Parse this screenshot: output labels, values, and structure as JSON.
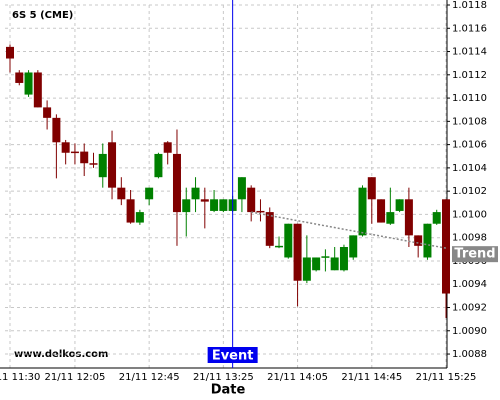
{
  "chart_data": {
    "type": "candlestick",
    "title": "6S 5 (CME)",
    "watermark": "www.delkos.com",
    "x_label": "Date",
    "categories": [
      "21/11 11:30",
      null,
      null,
      null,
      null,
      null,
      null,
      "21/11 12:05",
      null,
      null,
      null,
      null,
      null,
      null,
      null,
      "21/11 12:45",
      null,
      null,
      null,
      null,
      null,
      null,
      null,
      "21/11 13:25",
      null,
      null,
      null,
      null,
      null,
      null,
      null,
      "21/11 14:05",
      null,
      null,
      null,
      null,
      null,
      null,
      null,
      "21/11 14:45",
      null,
      null,
      null,
      null,
      null,
      null,
      null,
      "21/11 15:25"
    ],
    "open": [
      1.01144,
      1.01122,
      1.01103,
      1.01122,
      1.01092,
      1.01083,
      1.01062,
      1.01054,
      1.01054,
      1.01044,
      1.01032,
      1.01062,
      1.01023,
      1.01013,
      1.00993,
      1.01013,
      1.01032,
      1.01062,
      1.01052,
      1.01002,
      1.01013,
      1.01013,
      1.01003,
      1.01003,
      1.01003,
      1.01013,
      1.01023,
      1.01003,
      1.01002,
      1.00973,
      1.00963,
      1.00992,
      1.00943,
      1.00952,
      1.00963,
      1.00952,
      1.00952,
      1.00963,
      1.00982,
      1.01032,
      1.01013,
      1.00992,
      1.01003,
      1.01013,
      1.00982,
      1.00963,
      1.00992,
      1.01013
    ],
    "high": [
      1.01146,
      1.01124,
      1.01124,
      1.01124,
      1.01098,
      1.01086,
      1.01064,
      1.01061,
      1.01061,
      1.01053,
      1.01061,
      1.01072,
      1.01032,
      1.01021,
      1.01004,
      1.01023,
      1.01053,
      1.01063,
      1.01073,
      1.01023,
      1.01032,
      1.01023,
      1.01021,
      1.01013,
      1.01016,
      1.01032,
      1.01025,
      1.01013,
      1.01006,
      1.00981,
      1.00992,
      1.00992,
      1.00982,
      1.00963,
      1.0097,
      1.00972,
      1.00974,
      1.00982,
      1.01025,
      1.01032,
      1.01013,
      1.01023,
      1.01013,
      1.01023,
      1.00982,
      1.00992,
      1.01004,
      1.01013
    ],
    "low": [
      1.01122,
      1.01111,
      1.01101,
      1.01092,
      1.01073,
      1.01031,
      1.01043,
      1.01043,
      1.01033,
      1.0104,
      1.01023,
      1.01013,
      1.01008,
      1.00992,
      1.00991,
      1.01008,
      1.01031,
      1.01043,
      1.00973,
      1.00981,
      1.01002,
      1.00988,
      1.01002,
      1.01002,
      1.01002,
      1.01002,
      1.00994,
      1.00994,
      1.00971,
      1.00971,
      1.00962,
      1.00921,
      1.00941,
      1.00951,
      1.00951,
      1.00952,
      1.00951,
      1.00961,
      1.00981,
      1.00992,
      1.00993,
      1.00991,
      1.01002,
      1.00972,
      1.00963,
      1.00961,
      1.00991,
      1.00911
    ],
    "close": [
      1.01134,
      1.01113,
      1.01122,
      1.01092,
      1.01083,
      1.01062,
      1.01053,
      1.01053,
      1.01044,
      1.01043,
      1.01052,
      1.01023,
      1.01013,
      1.00993,
      1.01002,
      1.01023,
      1.01052,
      1.01053,
      1.01002,
      1.01013,
      1.01023,
      1.01011,
      1.01013,
      1.01013,
      1.01013,
      1.01032,
      1.01002,
      1.01002,
      1.00973,
      1.00973,
      1.00992,
      1.00943,
      1.00963,
      1.00963,
      1.00964,
      1.00963,
      1.00972,
      1.00982,
      1.01023,
      1.01013,
      1.00993,
      1.01002,
      1.01013,
      1.00982,
      1.00973,
      1.00992,
      1.01002,
      1.00932
    ],
    "up_color": "#008000",
    "down_color": "#800000",
    "ylim": [
      1.00868,
      1.0118
    ],
    "yticks": [
      1.0088,
      {
        "value": 1.009,
        "label": "1.0090"
      },
      1.0092,
      1.0094,
      1.0096,
      1.0098,
      {
        "value": 1.01,
        "label": "1.0100"
      },
      1.0102,
      1.0104,
      1.0106,
      1.0108,
      {
        "value": 1.011,
        "label": "1.0110"
      },
      1.0112,
      1.0114,
      1.0116,
      1.0118
    ],
    "grid": true,
    "event": {
      "label": "Event",
      "at": 24,
      "color": "#0000ee"
    },
    "trend": {
      "label": "Trend",
      "from": [
        26,
        1.01002
      ],
      "to": [
        47,
        1.00971
      ],
      "color": "#888888"
    }
  }
}
